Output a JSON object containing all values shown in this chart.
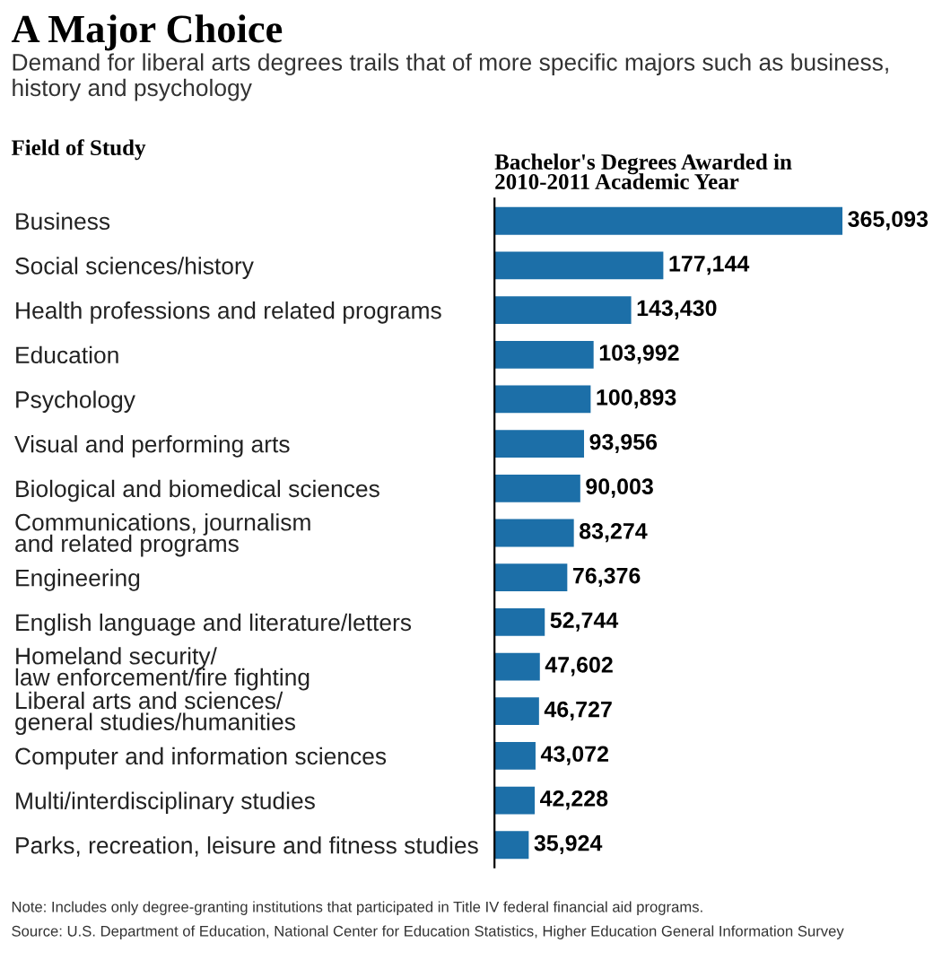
{
  "chart_data": {
    "type": "bar",
    "orientation": "horizontal",
    "title": "A Major Choice",
    "subtitle": "Demand for liberal arts degrees trails that of more specific majors such as business, history and psychology",
    "ylabel": "Field of Study",
    "xlabel": "Bachelor's Degrees Awarded in\n2010-2011 Academic Year",
    "categories": [
      "Business",
      "Social sciences/history",
      "Health professions and related programs",
      "Education",
      "Psychology",
      "Visual and performing arts",
      "Biological and biomedical sciences",
      "Communications, journalism\nand related programs",
      "Engineering",
      "English language and literature/letters",
      "Homeland security/\nlaw enforcement/fire fighting",
      "Liberal arts and sciences/\ngeneral studies/humanities",
      "Computer and information sciences",
      "Multi/interdisciplinary studies",
      "Parks, recreation, leisure and fitness studies"
    ],
    "values": [
      365093,
      177144,
      143430,
      103992,
      100893,
      93956,
      90003,
      83274,
      76376,
      52744,
      47602,
      46727,
      43072,
      42228,
      35924
    ],
    "value_labels": [
      "365,093",
      "177,144",
      "143,430",
      "103,992",
      "100,893",
      "93,956",
      "90,003",
      "83,274",
      "76,376",
      "52,744",
      "47,602",
      "46,727",
      "43,072",
      "42,228",
      "35,924"
    ],
    "color": "#1c6fa8",
    "grid": false,
    "legend": false,
    "annotations": [
      "Note: Includes only degree-granting institutions that participated in Title IV federal financial aid programs.",
      "Source: U.S. Department of Education, National Center for Education Statistics, Higher Education General Information Survey"
    ]
  }
}
